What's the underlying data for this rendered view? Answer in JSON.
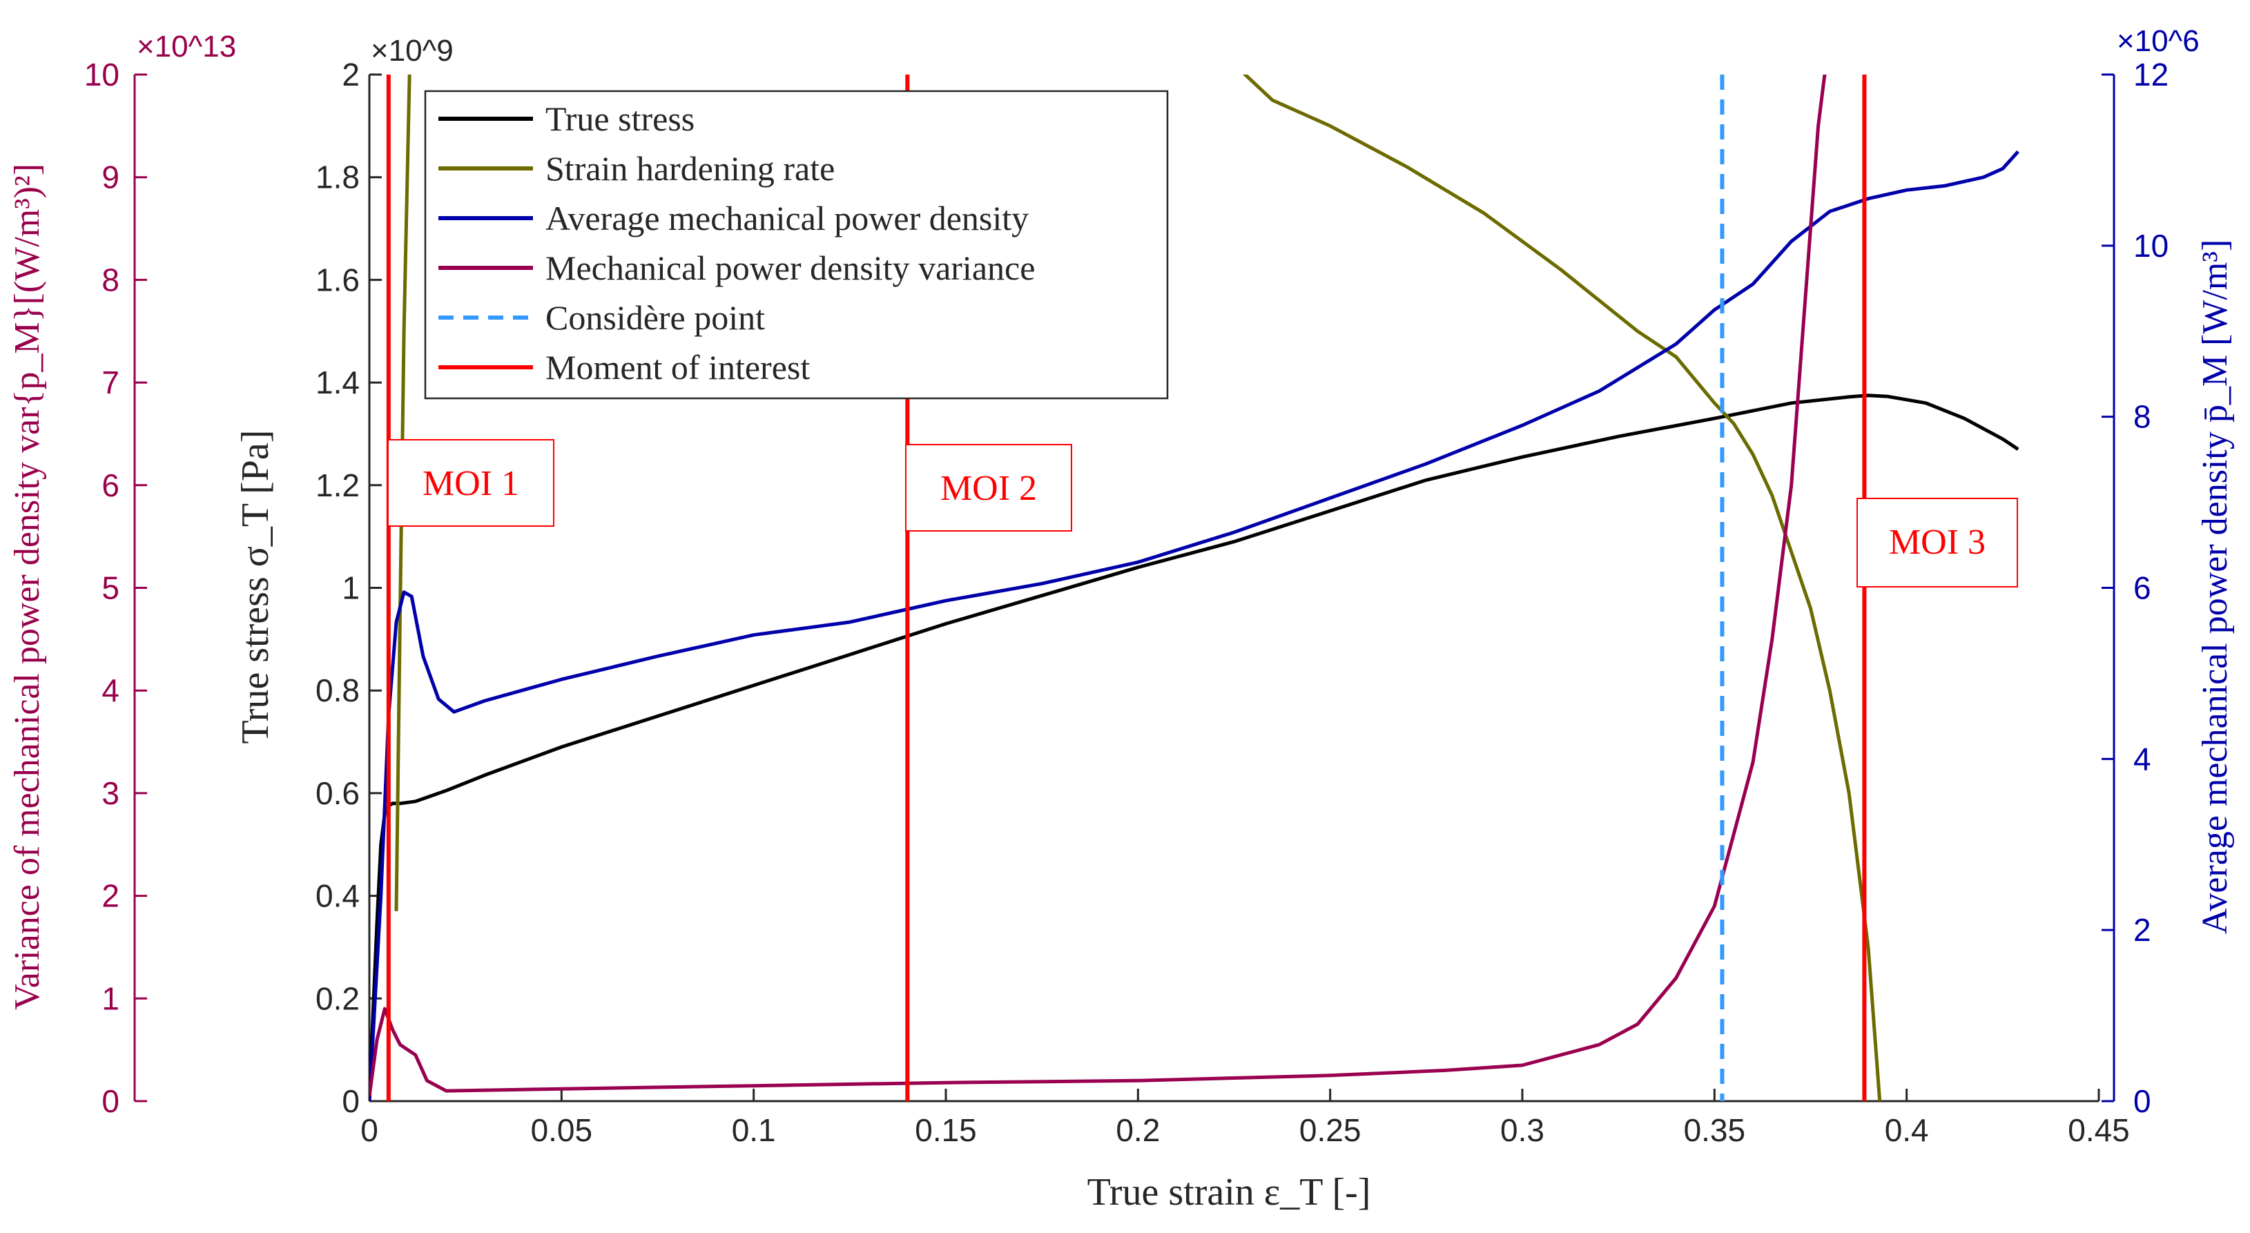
{
  "colors": {
    "stress": "#000000",
    "hardening": "#6b6b00",
    "power": "#0000aa",
    "variance": "#990050",
    "considere": "#3399ff",
    "moi": "#ff0000",
    "variance_axis": "#99004c",
    "power_axis": "#0000aa"
  },
  "chart_data": {
    "type": "line",
    "xlabel": "True strain ε_T [-]",
    "x_axis": {
      "range": [
        0,
        0.45
      ],
      "ticks": [
        "0",
        "0.05",
        "0.1",
        "0.15",
        "0.2",
        "0.25",
        "0.3",
        "0.35",
        "0.4",
        "0.45"
      ]
    },
    "left_axis": {
      "label": "True stress σ_T [Pa]",
      "range": [
        0,
        2
      ],
      "ticks": [
        "0",
        "0.2",
        "0.4",
        "0.6",
        "0.8",
        "1",
        "1.2",
        "1.4",
        "1.6",
        "1.8",
        "2"
      ],
      "exponent": "×10^9"
    },
    "variance_axis": {
      "label": "Variance of mechanical power density var{p_M}[(W/m³)²]",
      "range": [
        0,
        10
      ],
      "ticks": [
        "0",
        "1",
        "2",
        "3",
        "4",
        "5",
        "6",
        "7",
        "8",
        "9",
        "10"
      ],
      "exponent": "×10^13"
    },
    "right_axis": {
      "label": "Average mechanical power density p̄_M [W/m³]",
      "range": [
        0,
        12
      ],
      "ticks": [
        "0",
        "2",
        "4",
        "6",
        "8",
        "10",
        "12"
      ],
      "exponent": "×10^6"
    },
    "series": [
      {
        "name": "True stress",
        "axis": "left",
        "style": "solid",
        "points": [
          [
            0,
            0
          ],
          [
            0.001,
            0.18
          ],
          [
            0.002,
            0.35
          ],
          [
            0.003,
            0.5
          ],
          [
            0.004,
            0.56
          ],
          [
            0.005,
            0.575
          ],
          [
            0.006,
            0.58
          ],
          [
            0.008,
            0.58
          ],
          [
            0.012,
            0.584
          ],
          [
            0.02,
            0.605
          ],
          [
            0.03,
            0.635
          ],
          [
            0.05,
            0.69
          ],
          [
            0.075,
            0.75
          ],
          [
            0.1,
            0.81
          ],
          [
            0.125,
            0.87
          ],
          [
            0.15,
            0.93
          ],
          [
            0.175,
            0.985
          ],
          [
            0.2,
            1.04
          ],
          [
            0.225,
            1.09
          ],
          [
            0.25,
            1.15
          ],
          [
            0.275,
            1.21
          ],
          [
            0.3,
            1.255
          ],
          [
            0.325,
            1.295
          ],
          [
            0.35,
            1.33
          ],
          [
            0.37,
            1.36
          ],
          [
            0.385,
            1.372
          ],
          [
            0.39,
            1.375
          ],
          [
            0.395,
            1.373
          ],
          [
            0.405,
            1.36
          ],
          [
            0.415,
            1.33
          ],
          [
            0.425,
            1.29
          ],
          [
            0.429,
            1.27
          ]
        ]
      },
      {
        "name": "Strain hardening rate",
        "axis": "left",
        "style": "solid",
        "points": [
          [
            0.007,
            0.37
          ],
          [
            0.008,
            0.95
          ],
          [
            0.009,
            1.5
          ],
          [
            0.0105,
            2.02
          ],
          [
            null,
            null
          ],
          [
            0.225,
            2.02
          ],
          [
            0.235,
            1.95
          ],
          [
            0.25,
            1.9
          ],
          [
            0.27,
            1.82
          ],
          [
            0.29,
            1.73
          ],
          [
            0.31,
            1.62
          ],
          [
            0.33,
            1.5
          ],
          [
            0.34,
            1.45
          ],
          [
            0.35,
            1.36
          ],
          [
            0.355,
            1.32
          ],
          [
            0.36,
            1.26
          ],
          [
            0.365,
            1.18
          ],
          [
            0.37,
            1.07
          ],
          [
            0.375,
            0.96
          ],
          [
            0.38,
            0.8
          ],
          [
            0.385,
            0.6
          ],
          [
            0.39,
            0.3
          ],
          [
            0.393,
            0.0
          ]
        ]
      },
      {
        "name": "Average mechanical power density",
        "axis": "right",
        "style": "solid",
        "points": [
          [
            0,
            0
          ],
          [
            0.003,
            2.4
          ],
          [
            0.005,
            4.5
          ],
          [
            0.007,
            5.6
          ],
          [
            0.009,
            5.95
          ],
          [
            0.011,
            5.9
          ],
          [
            0.014,
            5.2
          ],
          [
            0.018,
            4.7
          ],
          [
            0.022,
            4.55
          ],
          [
            0.03,
            4.68
          ],
          [
            0.05,
            4.93
          ],
          [
            0.075,
            5.2
          ],
          [
            0.1,
            5.45
          ],
          [
            0.125,
            5.6
          ],
          [
            0.14,
            5.75
          ],
          [
            0.15,
            5.85
          ],
          [
            0.175,
            6.05
          ],
          [
            0.2,
            6.3
          ],
          [
            0.225,
            6.65
          ],
          [
            0.25,
            7.05
          ],
          [
            0.275,
            7.45
          ],
          [
            0.3,
            7.9
          ],
          [
            0.32,
            8.3
          ],
          [
            0.34,
            8.85
          ],
          [
            0.35,
            9.25
          ],
          [
            0.36,
            9.55
          ],
          [
            0.37,
            10.05
          ],
          [
            0.38,
            10.4
          ],
          [
            0.39,
            10.55
          ],
          [
            0.4,
            10.65
          ],
          [
            0.41,
            10.7
          ],
          [
            0.42,
            10.8
          ],
          [
            0.425,
            10.9
          ],
          [
            0.429,
            11.1
          ]
        ]
      },
      {
        "name": "Mechanical power density variance",
        "axis": "variance",
        "style": "solid",
        "points": [
          [
            0,
            0.05
          ],
          [
            0.002,
            0.6
          ],
          [
            0.004,
            0.9
          ],
          [
            0.006,
            0.7
          ],
          [
            0.008,
            0.55
          ],
          [
            0.012,
            0.45
          ],
          [
            0.015,
            0.2
          ],
          [
            0.02,
            0.1
          ],
          [
            0.05,
            0.12
          ],
          [
            0.1,
            0.15
          ],
          [
            0.15,
            0.18
          ],
          [
            0.2,
            0.2
          ],
          [
            0.25,
            0.25
          ],
          [
            0.28,
            0.3
          ],
          [
            0.3,
            0.35
          ],
          [
            0.32,
            0.55
          ],
          [
            0.33,
            0.75
          ],
          [
            0.34,
            1.2
          ],
          [
            0.35,
            1.9
          ],
          [
            0.355,
            2.6
          ],
          [
            0.36,
            3.3
          ],
          [
            0.365,
            4.5
          ],
          [
            0.37,
            6.0
          ],
          [
            0.374,
            8.0
          ],
          [
            0.377,
            9.5
          ],
          [
            0.379,
            10.1
          ]
        ]
      },
      {
        "name": "Considère point",
        "axis": "left",
        "style": "dashed",
        "x": 0.352
      },
      {
        "name": "Moment of interest",
        "axis": "left",
        "style": "solid",
        "x": [
          0.005,
          0.14,
          0.389
        ]
      }
    ],
    "annotations": [
      {
        "text": "MOI 1",
        "x": 0.005
      },
      {
        "text": "MOI 2",
        "x": 0.14
      },
      {
        "text": "MOI 3",
        "x": 0.389
      }
    ],
    "legend": {
      "position": "top-left",
      "entries": [
        "True stress",
        "Strain hardening rate",
        "Average mechanical power density",
        "Mechanical power density variance",
        "Considère point",
        "Moment of interest"
      ]
    }
  }
}
